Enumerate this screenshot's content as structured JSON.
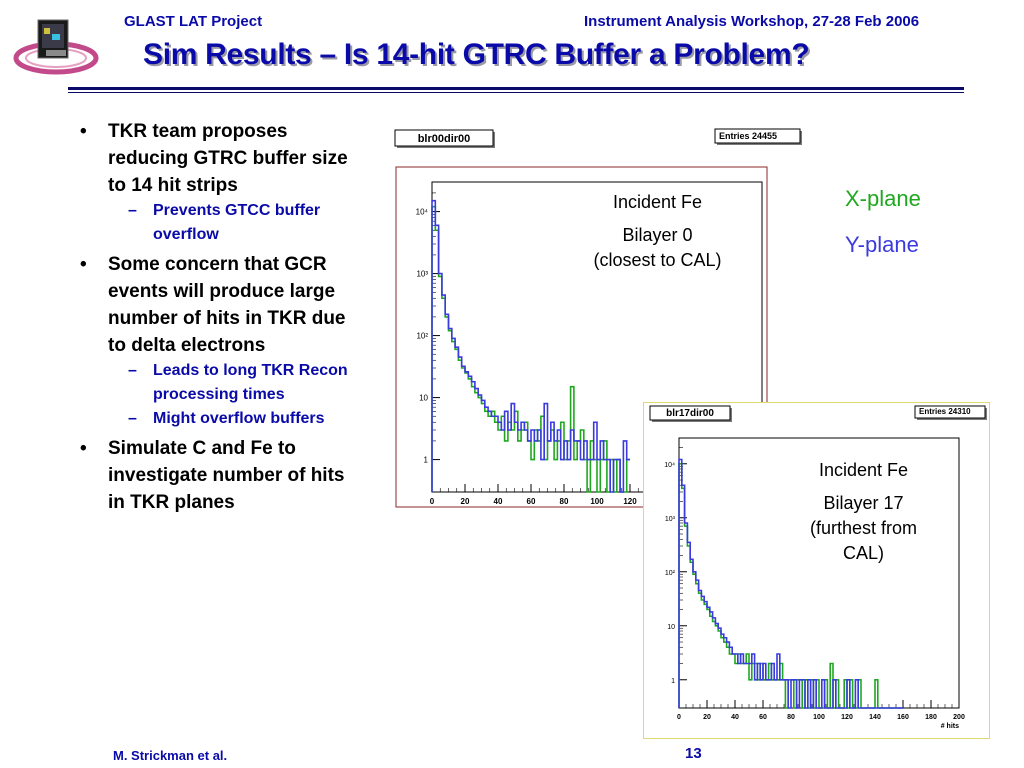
{
  "header": {
    "left": "GLAST LAT Project",
    "right": "Instrument Analysis Workshop, 27-28 Feb 2006",
    "title": "Sim Results – Is 14-hit GTRC Buffer a Problem?"
  },
  "bullets": [
    {
      "text": "TKR team proposes reducing GTRC buffer size to 14 hit strips",
      "subs": [
        "Prevents GTCC buffer overflow"
      ]
    },
    {
      "text": "Some concern that GCR events will produce large number of hits in TKR due to delta electrons",
      "subs": [
        "Leads to long TKR Recon processing times",
        "Might overflow buffers"
      ]
    },
    {
      "text": "Simulate C and Fe to investigate number of hits in TKR planes",
      "subs": []
    }
  ],
  "legend": {
    "x_plane": "X-plane",
    "y_plane": "Y-plane",
    "x_color": "#1fa81f",
    "y_color": "#3a3ae0"
  },
  "footer": {
    "author": "M. Strickman et al.",
    "page": "13"
  },
  "chart_data": [
    {
      "type": "histogram",
      "title": "blr00dir00",
      "stats": "Entries   24455",
      "annotation": [
        "Incident Fe",
        "Bilayer 0",
        "(closest to CAL)"
      ],
      "xlim": [
        0,
        200
      ],
      "ylog": true,
      "ylim": [
        0.3,
        30000
      ],
      "x_ticks": [
        "0",
        "20",
        "40",
        "60",
        "80",
        "100",
        "120"
      ],
      "y_ticks": [
        "1",
        "10",
        "10²",
        "10³",
        "10⁴"
      ],
      "bin_width": 2,
      "series": [
        {
          "name": "X-plane",
          "color": "#1fa81f",
          "values": [
            12000,
            5000,
            900,
            400,
            200,
            120,
            80,
            60,
            40,
            30,
            25,
            20,
            15,
            12,
            10,
            8,
            6,
            5,
            6,
            4,
            3,
            5,
            2,
            4,
            3,
            6,
            2,
            3,
            4,
            2,
            1,
            3,
            2,
            5,
            1,
            2,
            3,
            1,
            2,
            4,
            1,
            2,
            15,
            1,
            2,
            3,
            1,
            0,
            2,
            1,
            0,
            1,
            2,
            0,
            1,
            0,
            1,
            0,
            0,
            1
          ]
        },
        {
          "name": "Y-plane",
          "color": "#3a3ae0",
          "values": [
            15000,
            6000,
            1000,
            450,
            220,
            130,
            90,
            65,
            45,
            32,
            26,
            22,
            18,
            14,
            11,
            9,
            7,
            6,
            5,
            5,
            4,
            3,
            6,
            3,
            8,
            4,
            3,
            4,
            3,
            2,
            3,
            2,
            3,
            1,
            8,
            2,
            4,
            2,
            3,
            1,
            2,
            1,
            3,
            2,
            2,
            1,
            2,
            1,
            1,
            4,
            1,
            2,
            1,
            1,
            0,
            1,
            1,
            0,
            2,
            1
          ]
        }
      ]
    },
    {
      "type": "histogram",
      "title": "blr17dir00",
      "stats": "Entries   24310",
      "annotation": [
        "Incident Fe",
        "Bilayer 17",
        "(furthest from",
        "CAL)"
      ],
      "xlim": [
        0,
        200
      ],
      "xlabel": "# hits",
      "ylog": true,
      "ylim": [
        0.3,
        30000
      ],
      "x_ticks": [
        "0",
        "20",
        "40",
        "60",
        "80",
        "100",
        "120",
        "140",
        "160",
        "180",
        "200"
      ],
      "y_ticks": [
        "1",
        "10",
        "10²",
        "10³",
        "10⁴"
      ],
      "bin_width": 2,
      "series": [
        {
          "name": "X-plane",
          "color": "#1fa81f",
          "values": [
            10000,
            3500,
            700,
            300,
            150,
            90,
            60,
            40,
            30,
            25,
            20,
            15,
            12,
            10,
            8,
            6,
            5,
            4,
            3,
            3,
            2,
            3,
            2,
            2,
            3,
            1,
            2,
            2,
            1,
            2,
            1,
            1,
            2,
            1,
            1,
            1,
            2,
            1,
            0,
            1,
            1,
            0,
            1,
            1,
            0,
            1,
            0,
            1,
            0,
            1,
            0,
            0,
            1,
            0,
            2,
            0,
            1,
            0,
            0,
            1,
            0,
            1,
            0,
            0,
            1,
            0,
            0,
            0,
            0,
            0,
            1,
            0,
            0,
            0,
            0,
            0,
            0,
            0,
            0,
            0
          ]
        },
        {
          "name": "Y-plane",
          "color": "#3a3ae0",
          "values": [
            12000,
            4000,
            800,
            350,
            170,
            100,
            70,
            45,
            35,
            28,
            22,
            18,
            14,
            11,
            9,
            7,
            6,
            5,
            4,
            3,
            3,
            2,
            3,
            2,
            2,
            2,
            3,
            1,
            2,
            1,
            2,
            1,
            1,
            2,
            1,
            3,
            1,
            1,
            1,
            0,
            1,
            1,
            0,
            1,
            1,
            0,
            1,
            0,
            1,
            0,
            0,
            1,
            0,
            0,
            0,
            1,
            0,
            0,
            0,
            0,
            1,
            0,
            0,
            1,
            0,
            0,
            0,
            0,
            0,
            0,
            0,
            0,
            0,
            0,
            0,
            0,
            0,
            0,
            0,
            0
          ]
        }
      ]
    }
  ]
}
